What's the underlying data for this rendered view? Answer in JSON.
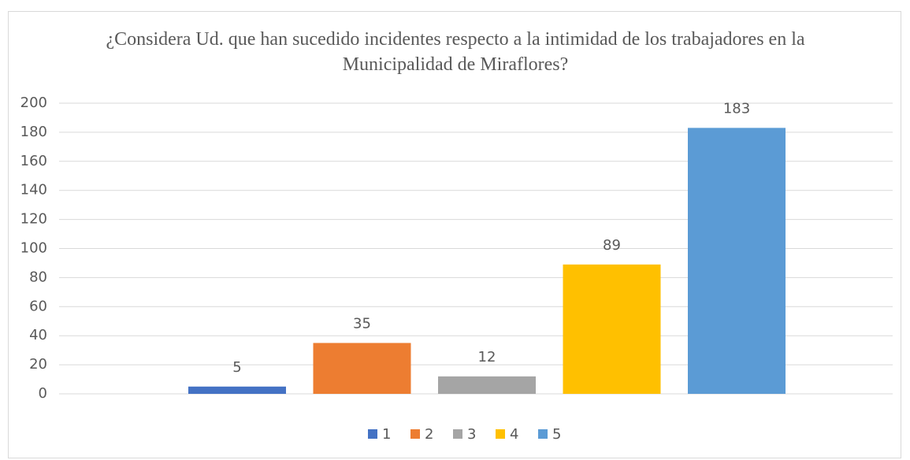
{
  "chart_data": {
    "type": "bar",
    "title": "¿Considera Ud. que han sucedido incidentes respecto a la intimidad de los trabajadores en la Municipalidad de Miraflores?",
    "categories": [
      null
    ],
    "series": [
      {
        "name": "1",
        "color": "#4472c4",
        "values": [
          5
        ]
      },
      {
        "name": "2",
        "color": "#ed7d31",
        "values": [
          35
        ]
      },
      {
        "name": "3",
        "color": "#a5a5a5",
        "values": [
          12
        ]
      },
      {
        "name": "4",
        "color": "#ffc000",
        "values": [
          89
        ]
      },
      {
        "name": "5",
        "color": "#5b9bd5",
        "values": [
          183
        ]
      }
    ],
    "ylim": [
      0,
      200
    ],
    "yticks": [
      0,
      20,
      40,
      60,
      80,
      100,
      120,
      140,
      160,
      180,
      200
    ],
    "grid": true,
    "legend": "bottom",
    "data_labels": true
  }
}
